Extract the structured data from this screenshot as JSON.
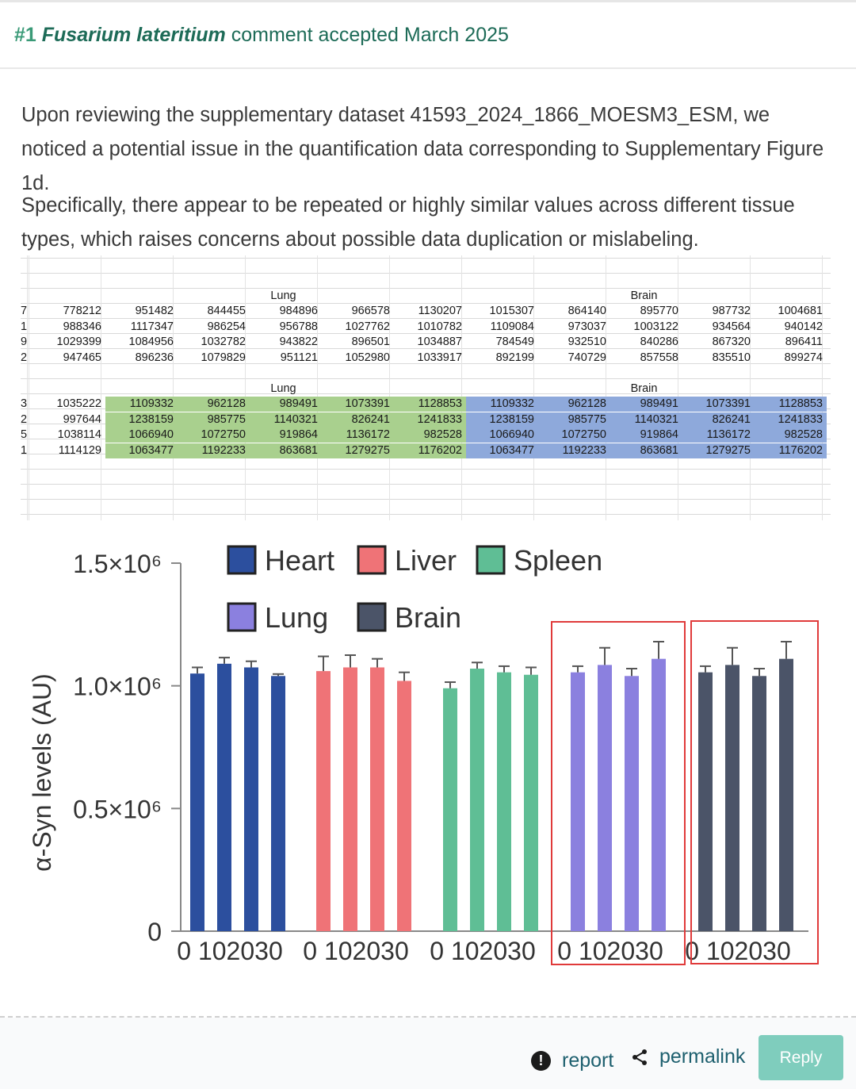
{
  "header": {
    "number": "#1",
    "species": "Fusarium lateritium",
    "status": "comment accepted March 2025"
  },
  "comment": {
    "paragraph1": "Upon reviewing the supplementary dataset 41593_2024_1866_MOESM3_ESM, we noticed a potential issue in the quantification data corresponding to Supplementary Figure 1d.",
    "paragraph2": "Specifically, there appear to be repeated or highly similar values across different tissue types, which raises concerns about possible data duplication or mislabeling."
  },
  "spreadsheet": {
    "colors": {
      "green": "#a9d08e",
      "blue": "#8ea9db"
    },
    "block1": {
      "row_labels": [
        "7",
        "1",
        "9",
        "2"
      ],
      "group_labels": [
        "Lung",
        "Brain"
      ],
      "rows": [
        [
          "778212",
          "951482",
          "844455",
          "984896",
          "966578",
          "1130207",
          "1015307",
          "864140",
          "895770",
          "987732",
          "1004681"
        ],
        [
          "988346",
          "1117347",
          "986254",
          "956788",
          "1027762",
          "1010782",
          "1109084",
          "973037",
          "1003122",
          "934564",
          "940142"
        ],
        [
          "1029399",
          "1084956",
          "1032782",
          "943822",
          "896501",
          "1034887",
          "784549",
          "932510",
          "840286",
          "867320",
          "896411"
        ],
        [
          "947465",
          "896236",
          "1079829",
          "951121",
          "1052980",
          "1033917",
          "892199",
          "740729",
          "857558",
          "835510",
          "899274"
        ]
      ]
    },
    "block2": {
      "row_labels": [
        "3",
        "2",
        "5",
        "1"
      ],
      "group_labels": [
        "Lung",
        "Brain"
      ],
      "rows": [
        [
          "1035222",
          "1109332",
          "962128",
          "989491",
          "1073391",
          "1128853",
          "1109332",
          "962128",
          "989491",
          "1073391",
          "1128853"
        ],
        [
          "997644",
          "1238159",
          "985775",
          "1140321",
          "826241",
          "1241833",
          "1238159",
          "985775",
          "1140321",
          "826241",
          "1241833"
        ],
        [
          "1038114",
          "1066940",
          "1072750",
          "919864",
          "1136172",
          "982528",
          "1066940",
          "1072750",
          "919864",
          "1136172",
          "982528"
        ],
        [
          "1114129",
          "1063477",
          "1192233",
          "863681",
          "1279275",
          "1176202",
          "1063477",
          "1192233",
          "863681",
          "1279275",
          "1176202"
        ]
      ]
    }
  },
  "chart_data": {
    "type": "bar",
    "title": "",
    "ylabel": "α-Syn levels (AU)",
    "ylim": [
      0,
      1500000
    ],
    "y_ticks": [
      "0",
      "0.5×10⁶",
      "1.0×10⁶",
      "1.5×10⁶"
    ],
    "y_tick_values": [
      0,
      500000,
      1000000,
      1500000
    ],
    "x_tick_labels": [
      "0 102030",
      "0 102030",
      "0 102030",
      "0 102030",
      "0 102030"
    ],
    "legend": [
      "Heart",
      "Liver",
      "Spleen",
      "Lung",
      "Brain"
    ],
    "legend_placement": "top",
    "highlight_boxes": [
      "Lung",
      "Brain"
    ],
    "highlight_color": "#e03a3a",
    "series": [
      {
        "name": "Heart",
        "color": "#2c4f9e",
        "values": [
          1050000,
          1090000,
          1075000,
          1040000
        ],
        "errors": [
          25000,
          25000,
          25000,
          8000
        ]
      },
      {
        "name": "Liver",
        "color": "#ef7377",
        "values": [
          1060000,
          1075000,
          1075000,
          1020000
        ],
        "errors": [
          60000,
          50000,
          35000,
          35000
        ]
      },
      {
        "name": "Spleen",
        "color": "#5fbe95",
        "values": [
          990000,
          1070000,
          1055000,
          1045000
        ],
        "errors": [
          25000,
          25000,
          25000,
          30000
        ]
      },
      {
        "name": "Lung",
        "color": "#8b80df",
        "values": [
          1055000,
          1085000,
          1040000,
          1110000
        ],
        "errors": [
          25000,
          70000,
          30000,
          70000
        ]
      },
      {
        "name": "Brain",
        "color": "#4b5468",
        "values": [
          1055000,
          1085000,
          1040000,
          1110000
        ],
        "errors": [
          25000,
          70000,
          30000,
          70000
        ]
      }
    ]
  },
  "footer": {
    "report_label": "report",
    "permalink_label": "permalink",
    "reply_label": "Reply"
  }
}
